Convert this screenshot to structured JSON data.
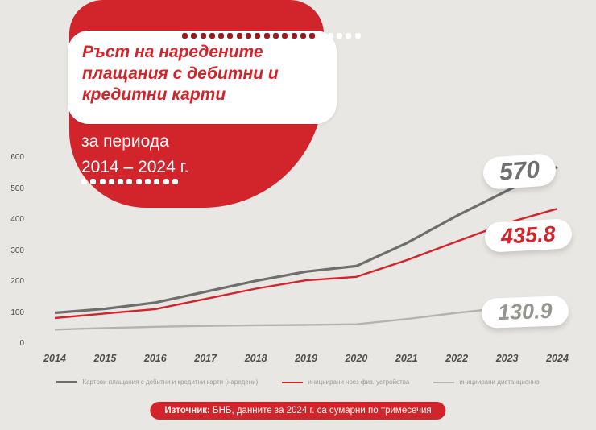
{
  "title": {
    "heading": "Ръст на наредените плащания с дебитни и кредитни карти",
    "period_line1": "за периода",
    "period_line2": "2014 – 2024 г."
  },
  "chart_data": {
    "type": "line",
    "title": "Ръст на наредените плащания с дебитни и кредитни карти за периода 2014 – 2024 г.",
    "xlabel": "",
    "ylabel": "",
    "categories": [
      "2014",
      "2015",
      "2016",
      "2017",
      "2018",
      "2019",
      "2020",
      "2021",
      "2022",
      "2023",
      "2024"
    ],
    "series": [
      {
        "name": "Картови плащания с дебитни и кредитни карти (наредени)",
        "color": "#6e6e6e",
        "values": [
          100,
          113,
          133,
          168,
          203,
          233,
          251,
          325,
          413,
          494,
          570
        ],
        "end_label": "570"
      },
      {
        "name": "инициирани чрез физ. устройства",
        "color": "#d2252b",
        "values": [
          83,
          98,
          112,
          145,
          178,
          205,
          216,
          270,
          330,
          390,
          435.8
        ],
        "end_label": "435.8"
      },
      {
        "name": "инициирани дистанционно",
        "color": "#b5b3b0",
        "values": [
          46,
          51,
          55,
          58,
          60,
          61,
          63,
          80,
          100,
          117,
          130.9
        ],
        "end_label": "130.9"
      }
    ],
    "y_ticks": [
      0,
      100,
      200,
      300,
      400,
      500,
      600
    ],
    "ylim": [
      0,
      650
    ],
    "grid": false,
    "legend_position": "bottom"
  },
  "footer": {
    "source_bold": "Източник:",
    "source_rest": " БНБ, данните за 2024 г. са сумарни по тримесечия"
  },
  "colors": {
    "accent_red": "#d2252b",
    "dark_gray": "#6e6e6e",
    "light_gray": "#b5b3b0",
    "background": "#e9e7e4"
  }
}
